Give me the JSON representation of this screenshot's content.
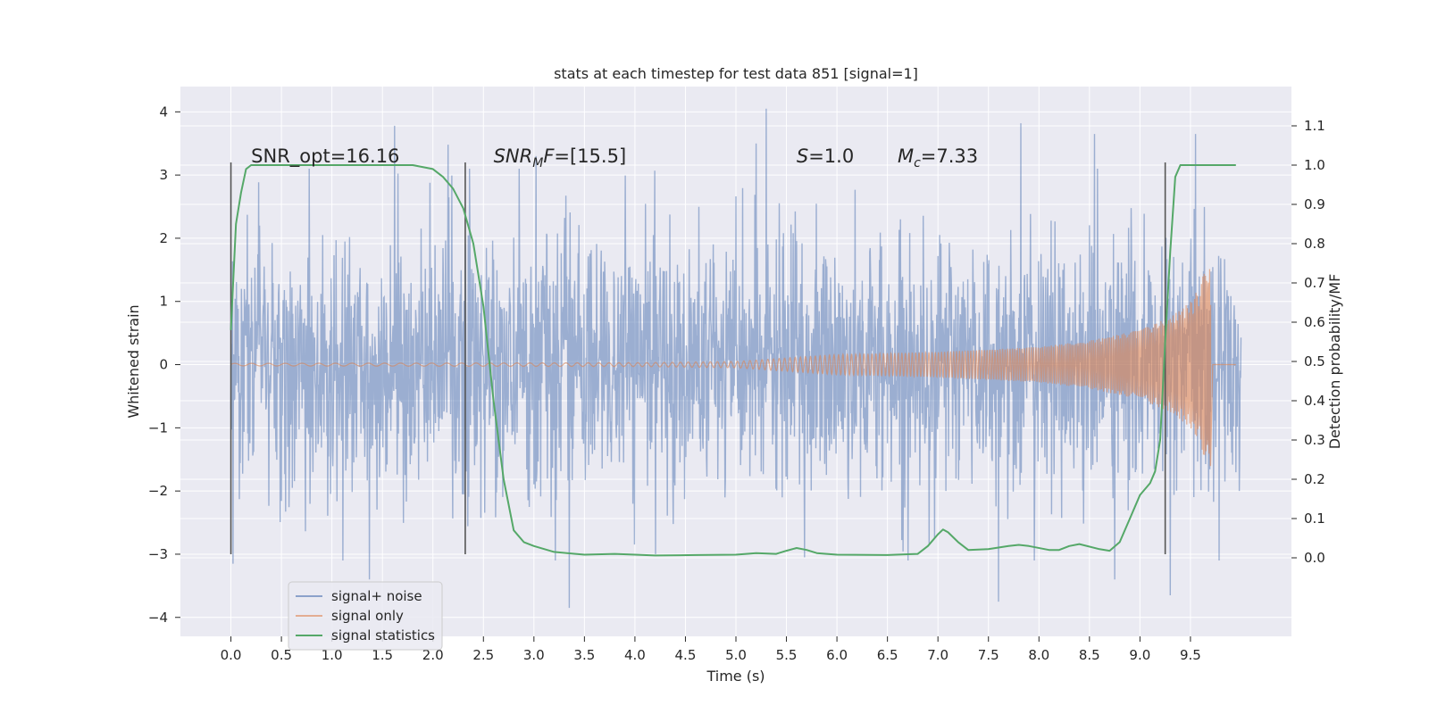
{
  "chart_data": {
    "type": "line",
    "title": "stats at each timestep for test data 851 [signal=1]",
    "xlabel": "Time (s)",
    "ylabel": "Whitened strain",
    "y2label": "Detection probability/MF",
    "xlim": [
      -0.5,
      10.5
    ],
    "ylim": [
      -4.3,
      4.4
    ],
    "y2lim": [
      -0.2,
      1.2
    ],
    "xticks": [
      "0.0",
      "0.5",
      "1.0",
      "1.5",
      "2.0",
      "2.5",
      "3.0",
      "3.5",
      "4.0",
      "4.5",
      "5.0",
      "5.5",
      "6.0",
      "6.5",
      "7.0",
      "7.5",
      "8.0",
      "8.5",
      "9.0",
      "9.5"
    ],
    "yticks": [
      "4",
      "3",
      "2",
      "1",
      "0",
      "−1",
      "−2",
      "−3",
      "−4"
    ],
    "y2ticks": [
      "1.1",
      "1.0",
      "0.9",
      "0.8",
      "0.7",
      "0.6",
      "0.5",
      "0.4",
      "0.3",
      "0.2",
      "0.1",
      "0.0"
    ],
    "grid": true,
    "legend_position": "lower-left",
    "colors": {
      "noise": "#4c72b0",
      "signal": "#dd8452",
      "stats": "#55a868",
      "vline": "#555555",
      "plot_bg": "#eaeaf2",
      "grid": "#ffffff"
    },
    "annotations": [
      {
        "text": "SNR_opt=16.16",
        "x": 0.2,
        "y": 3.3
      },
      {
        "text": "SNR",
        "sub": "M",
        "tail": "F=[15.5]",
        "x": 2.6,
        "y": 3.3
      },
      {
        "text": "S",
        "tail": "=1.0",
        "x": 5.6,
        "y": 3.3
      },
      {
        "text": "M",
        "sub": "c",
        "tail": "=7.33",
        "x": 6.6,
        "y": 3.3
      }
    ],
    "vlines": [
      0.0,
      2.32,
      9.25
    ],
    "vline_range": [
      -3.0,
      3.2
    ],
    "series": [
      {
        "name": "signal+ noise",
        "description": "whitened noisy strain, 0–10 s, roughly N(0,1) with peaks near ±3.5",
        "x_range": [
          0,
          10
        ],
        "peaks": [
          {
            "x": 0.02,
            "y": -3.15
          },
          {
            "x": 1.37,
            "y": -3.4
          },
          {
            "x": 1.62,
            "y": 3.78
          },
          {
            "x": 2.15,
            "y": 3.48
          },
          {
            "x": 3.02,
            "y": 3.3
          },
          {
            "x": 3.35,
            "y": -3.85
          },
          {
            "x": 5.3,
            "y": 4.05
          },
          {
            "x": 5.2,
            "y": 3.5
          },
          {
            "x": 5.68,
            "y": -3.05
          },
          {
            "x": 7.6,
            "y": -3.75
          },
          {
            "x": 7.82,
            "y": 3.82
          },
          {
            "x": 8.55,
            "y": 3.65
          },
          {
            "x": 8.75,
            "y": -3.4
          },
          {
            "x": 9.3,
            "y": -3.65
          },
          {
            "x": 9.55,
            "y": 3.65
          }
        ]
      },
      {
        "name": "signal only",
        "description": "inspiral chirp whose amplitude grows from ~0 to ~1.9 and ends at 9.7 s",
        "start": 0.0,
        "end": 9.7,
        "envelope": [
          {
            "x": 0.0,
            "y": 0.02
          },
          {
            "x": 4.0,
            "y": 0.03
          },
          {
            "x": 5.0,
            "y": 0.05
          },
          {
            "x": 6.0,
            "y": 0.16
          },
          {
            "x": 7.0,
            "y": 0.2
          },
          {
            "x": 8.0,
            "y": 0.28
          },
          {
            "x": 8.5,
            "y": 0.38
          },
          {
            "x": 9.0,
            "y": 0.55
          },
          {
            "x": 9.3,
            "y": 0.75
          },
          {
            "x": 9.5,
            "y": 1.0
          },
          {
            "x": 9.6,
            "y": 1.25
          },
          {
            "x": 9.7,
            "y": 1.9
          }
        ]
      },
      {
        "name": "signal statistics",
        "axis": "right",
        "x": [
          0.0,
          0.05,
          0.1,
          0.15,
          0.2,
          0.3,
          0.5,
          1.0,
          1.5,
          1.8,
          2.0,
          2.1,
          2.2,
          2.3,
          2.4,
          2.5,
          2.6,
          2.7,
          2.8,
          2.9,
          3.0,
          3.2,
          3.5,
          3.8,
          4.2,
          4.6,
          5.0,
          5.2,
          5.4,
          5.5,
          5.6,
          5.7,
          5.8,
          6.0,
          6.5,
          6.8,
          6.9,
          7.0,
          7.05,
          7.1,
          7.2,
          7.3,
          7.5,
          7.7,
          7.8,
          7.9,
          8.1,
          8.2,
          8.3,
          8.4,
          8.6,
          8.7,
          8.8,
          8.9,
          9.0,
          9.1,
          9.15,
          9.2,
          9.25,
          9.3,
          9.35,
          9.4,
          9.5,
          9.7,
          9.95
        ],
        "y": [
          0.58,
          0.85,
          0.93,
          0.99,
          1.0,
          1.0,
          1.0,
          1.0,
          1.0,
          1.0,
          0.99,
          0.97,
          0.94,
          0.89,
          0.8,
          0.64,
          0.4,
          0.2,
          0.07,
          0.04,
          0.03,
          0.015,
          0.008,
          0.01,
          0.006,
          0.007,
          0.008,
          0.012,
          0.01,
          0.018,
          0.025,
          0.02,
          0.012,
          0.008,
          0.007,
          0.01,
          0.03,
          0.06,
          0.072,
          0.065,
          0.04,
          0.02,
          0.022,
          0.03,
          0.033,
          0.03,
          0.02,
          0.02,
          0.03,
          0.035,
          0.022,
          0.018,
          0.04,
          0.1,
          0.16,
          0.19,
          0.22,
          0.3,
          0.55,
          0.78,
          0.97,
          1.0,
          1.0,
          1.0,
          1.0
        ]
      }
    ]
  }
}
